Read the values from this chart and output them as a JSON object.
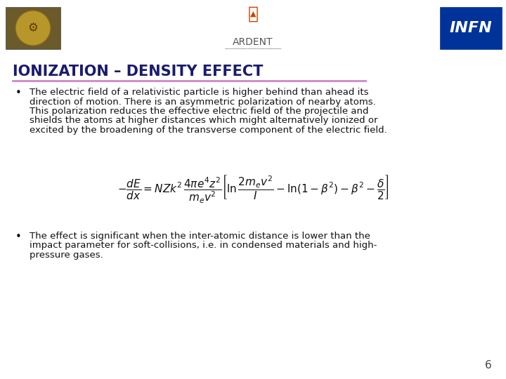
{
  "bg_color": "#ffffff",
  "title": "IONIZATION – DENSITY EFFECT",
  "title_color": "#1a1a6e",
  "title_fontsize": 15,
  "divider_color": "#cc88cc",
  "bullet1_lines": [
    "The electric field of a relativistic particle is higher behind than ahead its",
    "direction of motion. There is an asymmetric polarization of nearby atoms.",
    "This polarization reduces the effective electric field of the projectile and",
    "shields the atoms at higher distances which might alternatively ionized or",
    "excited by the broadening of the transverse component of the electric field."
  ],
  "bullet2_lines": [
    "The effect is significant when the inter-atomic distance is lower than the",
    "impact parameter for soft-collisions, i.e. in condensed materials and high-",
    "pressure gases."
  ],
  "bullet_fontsize": 9.5,
  "bullet_color": "#111111",
  "formula_fontsize": 11,
  "page_number": "6",
  "page_number_color": "#444444",
  "page_number_fontsize": 11,
  "header_left_color": "#8b7340",
  "header_right_color": "#1a3a8f",
  "ardent_color": "#555555",
  "ardent_fontsize": 10
}
